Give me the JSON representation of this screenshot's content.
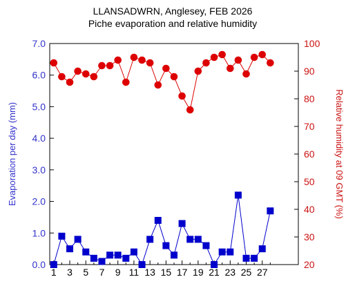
{
  "chart_data": {
    "type": "line",
    "title": "LLANSADWRN, Anglesey, FEB 2026",
    "subtitle": "Piche evaporation and relative humidity",
    "x": [
      1,
      2,
      3,
      4,
      5,
      6,
      7,
      8,
      9,
      10,
      11,
      12,
      13,
      14,
      15,
      16,
      17,
      18,
      19,
      20,
      21,
      22,
      23,
      24,
      25,
      26,
      27,
      28
    ],
    "x_ticks": [
      1,
      3,
      5,
      7,
      9,
      11,
      13,
      15,
      17,
      19,
      21,
      23,
      25,
      27
    ],
    "xlim": [
      0.5,
      31.5
    ],
    "grid": false,
    "left_axis": {
      "label": "Evaporation per day (mm)",
      "lim": [
        0,
        7
      ],
      "ticks": [
        "0.0",
        "1.0",
        "2.0",
        "3.0",
        "4.0",
        "5.0",
        "6.0",
        "7.0"
      ],
      "color": "#3333cc"
    },
    "right_axis": {
      "label": "Relative humidity at 09 GMT (%)",
      "lim": [
        20,
        100
      ],
      "ticks": [
        "20",
        "30",
        "40",
        "50",
        "60",
        "70",
        "80",
        "90",
        "100"
      ],
      "color": "#cc1111"
    },
    "series": [
      {
        "axis": "left",
        "marker": "square",
        "color": "#0000cc",
        "values": [
          0.0,
          0.9,
          0.5,
          0.8,
          0.4,
          0.2,
          0.1,
          0.3,
          0.3,
          0.2,
          0.4,
          0.0,
          0.8,
          1.4,
          0.6,
          0.3,
          1.3,
          0.8,
          0.8,
          0.6,
          0.0,
          0.4,
          0.4,
          2.2,
          0.2,
          0.2,
          0.5,
          1.7
        ]
      },
      {
        "axis": "right",
        "marker": "circle",
        "color": "#dd0000",
        "values": [
          93,
          88,
          86,
          90,
          89,
          88,
          92,
          92,
          94,
          86,
          95,
          94,
          93,
          85,
          91,
          88,
          81,
          76,
          90,
          93,
          95,
          96,
          91,
          94,
          89,
          95,
          96,
          93
        ]
      }
    ]
  }
}
